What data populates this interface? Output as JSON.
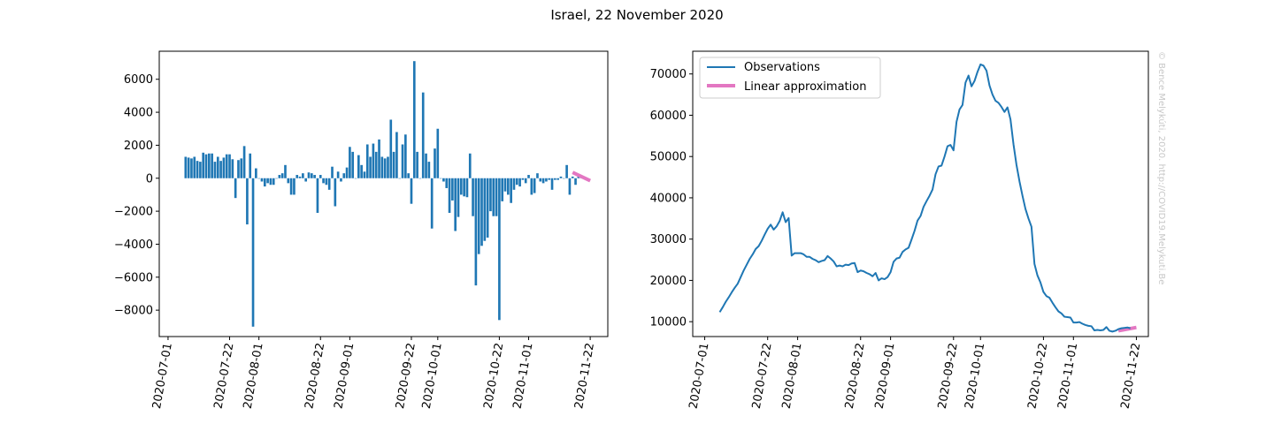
{
  "figure_title": "Israel, 22 November 2020",
  "credit": "© Bence Melykúti, 2020. http://COVID19.Melykuti.Be",
  "colors": {
    "bars": "#1f77b4",
    "observations": "#1f77b4",
    "linear": "#e377c2"
  },
  "chart_data": [
    {
      "type": "bar",
      "x_type": "date",
      "xlim": [
        "2020-06-28",
        "2020-11-28"
      ],
      "ylim": [
        -9600,
        7700
      ],
      "xticks": [
        "2020-07-01",
        "2020-07-22",
        "2020-08-01",
        "2020-08-22",
        "2020-09-01",
        "2020-09-22",
        "2020-10-01",
        "2020-10-22",
        "2020-11-01",
        "2020-11-22"
      ],
      "yticks": [
        -8000,
        -6000,
        -4000,
        -2000,
        0,
        2000,
        4000,
        6000
      ],
      "ytick_labels": [
        "−8000",
        "−6000",
        "−4000",
        "−2000",
        "0",
        "2000",
        "4000",
        "6000"
      ],
      "start_date": "2020-07-07",
      "series": [
        {
          "values": [
            1300,
            1250,
            1200,
            1300,
            1050,
            1000,
            1550,
            1450,
            1500,
            1500,
            1000,
            1300,
            1050,
            1250,
            1450,
            1450,
            1150,
            -1200,
            1100,
            1200,
            1950,
            -2800,
            1500,
            -9000,
            600,
            0,
            -200,
            -500,
            -300,
            -400,
            -400,
            0,
            200,
            300,
            800,
            -300,
            -1000,
            -1000,
            200,
            100,
            300,
            -200,
            350,
            300,
            200,
            -2100,
            200,
            -300,
            -400,
            -700,
            700,
            -1700,
            400,
            -200,
            300,
            650,
            1900,
            1600,
            0,
            1400,
            800,
            400,
            2050,
            1300,
            2100,
            1600,
            2350,
            1300,
            1200,
            1300,
            3550,
            1600,
            2800,
            0,
            2050,
            2650,
            300,
            -1550,
            7100,
            1600,
            0,
            5200,
            1500,
            1000,
            -3050,
            1800,
            3000,
            0,
            -200,
            -600,
            -2100,
            -1350,
            -3200,
            -2350,
            -1000,
            -1100,
            -1150,
            1500,
            -2300,
            -6500,
            -4600,
            -4100,
            -3800,
            -3600,
            -2000,
            -2300,
            -2300,
            -8600,
            -1400,
            -800,
            -1000,
            -1500,
            -700,
            -400,
            -500,
            -100,
            -300,
            200,
            -1000,
            -900,
            300,
            -200,
            -300,
            -200,
            -100,
            -700,
            -100,
            -100,
            100,
            0,
            800,
            -1000,
            100,
            -400,
            200,
            150
          ],
          "note": ""
        }
      ],
      "linear_approx": {
        "x": [
          "2020-11-16",
          "2020-11-22"
        ],
        "y": [
          350,
          -150
        ]
      }
    },
    {
      "type": "line",
      "x_type": "date",
      "xlim": [
        "2020-06-27",
        "2020-11-26"
      ],
      "ylim": [
        6400,
        75500
      ],
      "xticks": [
        "2020-07-01",
        "2020-07-22",
        "2020-08-01",
        "2020-08-22",
        "2020-09-01",
        "2020-09-22",
        "2020-10-01",
        "2020-10-22",
        "2020-11-01",
        "2020-11-22"
      ],
      "yticks": [
        10000,
        20000,
        30000,
        40000,
        50000,
        60000,
        70000
      ],
      "legend_position": "top-left",
      "series": [
        {
          "name": "Observations",
          "start_date": "2020-07-06",
          "values": [
            12300,
            13500,
            14800,
            15900,
            17100,
            18200,
            19200,
            20800,
            22400,
            23800,
            25200,
            26300,
            27600,
            28300,
            29600,
            31100,
            32500,
            33500,
            32300,
            33100,
            34400,
            36500,
            34100,
            35100,
            26000,
            26600,
            26600,
            26600,
            26300,
            25700,
            25700,
            25200,
            24900,
            24400,
            24700,
            24900,
            25900,
            25300,
            24600,
            23400,
            23600,
            23400,
            23800,
            23700,
            24100,
            24200,
            22000,
            22400,
            22200,
            21800,
            21500,
            21000,
            21800,
            20000,
            20500,
            20300,
            20800,
            22000,
            24500,
            25300,
            25500,
            26900,
            27500,
            27900,
            29900,
            32000,
            34500,
            35600,
            37800,
            39200,
            40500,
            42000,
            45700,
            47600,
            47800,
            50000,
            52500,
            52800,
            51500,
            58400,
            61400,
            62500,
            67900,
            69600,
            67000,
            68300,
            70500,
            72300,
            72000,
            70800,
            67200,
            65000,
            63500,
            63000,
            62000,
            60800,
            61900,
            59000,
            53000,
            48000,
            44000,
            40500,
            37300,
            35000,
            33000,
            24000,
            21200,
            19500,
            17200,
            16200,
            15800,
            14600,
            13500,
            12500,
            12000,
            11200,
            11100,
            11000,
            9800,
            9800,
            9900,
            9500,
            9200,
            9000,
            8900,
            7900,
            8000,
            7900,
            8000,
            8700,
            7800,
            7600,
            7800,
            8200,
            8400,
            8500,
            8600,
            8400
          ]
        },
        {
          "name": "Linear approximation",
          "x": [
            "2020-11-16",
            "2020-11-22"
          ],
          "y": [
            7800,
            8600
          ]
        }
      ]
    }
  ]
}
